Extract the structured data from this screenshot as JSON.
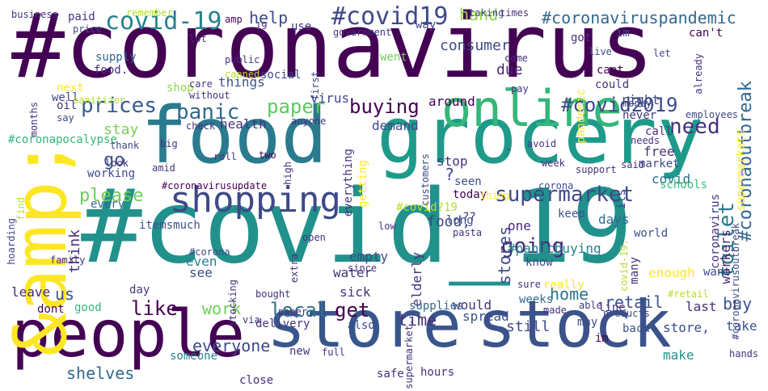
{
  "words": [
    {
      "id": "w001",
      "text": "#coronavirus",
      "color": "#440154"
    },
    {
      "id": "w002",
      "text": "#covid_19",
      "color": "#21918c"
    },
    {
      "id": "w003",
      "text": "food",
      "color": "#2a7b8e"
    },
    {
      "id": "w004",
      "text": "grocery",
      "color": "#1e9a8a"
    },
    {
      "id": "w005",
      "text": "store",
      "color": "#39568c"
    },
    {
      "id": "w006",
      "text": "stock",
      "color": "#3b528b"
    },
    {
      "id": "w007",
      "text": "people",
      "color": "#440154"
    },
    {
      "id": "w008",
      "text": "&amp;",
      "color": "#fde725"
    },
    {
      "id": "w009",
      "text": "online",
      "color": "#35b779"
    },
    {
      "id": "w010",
      "text": "shopping",
      "color": "#3e4989"
    },
    {
      "id": "w011",
      "text": "covid-19",
      "color": "#26828e"
    },
    {
      "id": "w012",
      "text": "#covid19",
      "color": "#3e4989"
    },
    {
      "id": "w013",
      "text": "#coronaviruspandemic",
      "color": "#31688e"
    },
    {
      "id": "w014",
      "text": "supermarket",
      "color": "#3e4989"
    },
    {
      "id": "w015",
      "text": "panic",
      "color": "#31688e"
    },
    {
      "id": "w016",
      "text": "prices",
      "color": "#365c8d"
    },
    {
      "id": "w017",
      "text": "paper",
      "color": "#5ec962"
    },
    {
      "id": "w018",
      "text": "buying",
      "color": "#440154"
    },
    {
      "id": "w019",
      "text": "need",
      "color": "#46327e"
    },
    {
      "id": "w020",
      "text": "#covid2019",
      "color": "#3e4989"
    },
    {
      "id": "w021",
      "text": "#coronaoutbreak",
      "color": "#31688e"
    },
    {
      "id": "w022",
      "text": "toilet",
      "color": "#287d8e"
    },
    {
      "id": "w023",
      "text": "going",
      "color": "#482878"
    },
    {
      "id": "w024",
      "text": "like",
      "color": "#440154"
    },
    {
      "id": "w025",
      "text": "get",
      "color": "#440154"
    },
    {
      "id": "w026",
      "text": "local",
      "color": "#2c728e"
    },
    {
      "id": "w027",
      "text": "please",
      "color": "#6ece58"
    },
    {
      "id": "w028",
      "text": "go",
      "color": "#3b528b"
    },
    {
      "id": "w029",
      "text": "stay",
      "color": "#7ad151"
    },
    {
      "id": "w030",
      "text": "help",
      "color": "#3e4989"
    },
    {
      "id": "w031",
      "text": "hand",
      "color": "#90d743"
    },
    {
      "id": "w032",
      "text": "consumer",
      "color": "#3e4989"
    },
    {
      "id": "w033",
      "text": "due",
      "color": "#482878"
    },
    {
      "id": "w034",
      "text": "demand",
      "color": "#3e4989"
    },
    {
      "id": "w035",
      "text": "stores",
      "color": "#3e4989"
    },
    {
      "id": "w036",
      "text": "home",
      "color": "#2c728e"
    },
    {
      "id": "w037",
      "text": "time",
      "color": "#46327e"
    },
    {
      "id": "w038",
      "text": "work",
      "color": "#6ece58"
    },
    {
      "id": "w039",
      "text": "everyone",
      "color": "#3e4989"
    },
    {
      "id": "w040",
      "text": "shelves",
      "color": "#31688e"
    },
    {
      "id": "w041",
      "text": "retail",
      "color": "#3b528b"
    },
    {
      "id": "w042",
      "text": "buy",
      "color": "#3b528b"
    },
    {
      "id": "w043",
      "text": "us",
      "color": "#3b528b"
    },
    {
      "id": "w044",
      "text": "food,",
      "color": "#3e4989"
    },
    {
      "id": "w045",
      "text": "covid",
      "color": "#2c728e"
    },
    {
      "id": "w046",
      "text": "free",
      "color": "#46327e"
    },
    {
      "id": "w047",
      "text": "market",
      "color": "#3e4989"
    },
    {
      "id": "w048",
      "text": "working",
      "color": "#3e4989"
    },
    {
      "id": "w049",
      "text": "health",
      "color": "#46327e"
    },
    {
      "id": "w050",
      "text": "supply",
      "color": "#31688e"
    },
    {
      "id": "w051",
      "text": "food.",
      "color": "#46327e"
    },
    {
      "id": "w052",
      "text": "things",
      "color": "#3b528b"
    },
    {
      "id": "w053",
      "text": "shop",
      "color": "#90d743"
    },
    {
      "id": "w054",
      "text": "social",
      "color": "#3e4989"
    },
    {
      "id": "w055",
      "text": "virus",
      "color": "#3e4989"
    },
    {
      "id": "w056",
      "text": "#covid?19",
      "color": "#b5de2b"
    },
    {
      "id": "w057",
      "text": "#panicbuying",
      "color": "#26828e"
    },
    {
      "id": "w058",
      "text": "days",
      "color": "#31688e"
    },
    {
      "id": "w059",
      "text": "keep",
      "color": "#3b528b"
    },
    {
      "id": "w060",
      "text": "know",
      "color": "#3e4989"
    },
    {
      "id": "w061",
      "text": "one",
      "color": "#482878"
    },
    {
      "id": "w062",
      "text": "long",
      "color": "#3b528b"
    },
    {
      "id": "w063",
      "text": "today",
      "color": "#440154"
    },
    {
      "id": "w064",
      "text": "seen",
      "color": "#3b528b"
    },
    {
      "id": "w065",
      "text": "stop",
      "color": "#46327e"
    },
    {
      "id": "w066",
      "text": "every",
      "color": "#31688e"
    },
    {
      "id": "w067",
      "text": "itemsmuch",
      "color": "#3b528b"
    },
    {
      "id": "w068",
      "text": "think",
      "color": "#46327e"
    },
    {
      "id": "w069",
      "text": "even",
      "color": "#26828e"
    },
    {
      "id": "w070",
      "text": "see",
      "color": "#3b528b"
    },
    {
      "id": "w071",
      "text": "day",
      "color": "#46327e"
    },
    {
      "id": "w072",
      "text": "empty",
      "color": "#3e4989"
    },
    {
      "id": "w073",
      "text": "water",
      "color": "#46327e"
    },
    {
      "id": "w074",
      "text": "sick",
      "color": "#46327e"
    },
    {
      "id": "w075",
      "text": "elderly",
      "color": "#46327e"
    },
    {
      "id": "w076",
      "text": "leave",
      "color": "#482878"
    },
    {
      "id": "w077",
      "text": "don\u0019t",
      "color": "#440154"
    },
    {
      "id": "w078",
      "text": "good",
      "color": "#35b779"
    },
    {
      "id": "w079",
      "text": "would",
      "color": "#46327e"
    },
    {
      "id": "w080",
      "text": "supplies",
      "color": "#31688e"
    },
    {
      "id": "w081",
      "text": "weeks",
      "color": "#31688e"
    },
    {
      "id": "w082",
      "text": "really",
      "color": "#fde725"
    },
    {
      "id": "w083",
      "text": "still",
      "color": "#3e4989"
    },
    {
      "id": "w084",
      "text": "spread",
      "color": "#3b528b"
    },
    {
      "id": "w085",
      "text": "also",
      "color": "#3e4989"
    },
    {
      "id": "w086",
      "text": "delivery",
      "color": "#46327e"
    },
    {
      "id": "w087",
      "text": "new",
      "color": "#46327e"
    },
    {
      "id": "w088",
      "text": "someone",
      "color": "#26828e"
    },
    {
      "id": "w089",
      "text": "make",
      "color": "#21918c"
    },
    {
      "id": "w090",
      "text": "take",
      "color": "#3b528b"
    },
    {
      "id": "w091",
      "text": "last",
      "color": "#482878"
    },
    {
      "id": "w092",
      "text": "back",
      "color": "#3b528b"
    },
    {
      "id": "w093",
      "text": "store,",
      "color": "#3e4989"
    },
    {
      "id": "w094",
      "text": "may",
      "color": "#3e4989"
    },
    {
      "id": "w095",
      "text": "line",
      "color": "#46327e"
    },
    {
      "id": "w096",
      "text": "i\u0019m",
      "color": "#440154"
    },
    {
      "id": "w097",
      "text": "many",
      "color": "#46327e"
    },
    {
      "id": "w098",
      "text": "enough",
      "color": "#fde725"
    },
    {
      "id": "w099",
      "text": "want",
      "color": "#3e4989"
    },
    {
      "id": "w100",
      "text": "world",
      "color": "#3b528b"
    },
    {
      "id": "w101",
      "text": "workers",
      "color": "#482878"
    },
    {
      "id": "w102",
      "text": "coronavirus",
      "color": "#46327e"
    },
    {
      "id": "w103",
      "text": "it\u0019s",
      "color": "#3e4989"
    },
    {
      "id": "w104",
      "text": "#coronavirusoutbreak",
      "color": "#3e4989"
    },
    {
      "id": "w105",
      "text": "#coronavirusupdate",
      "color": "#440154"
    },
    {
      "id": "w106",
      "text": "#coronapocalypse",
      "color": "#35b779"
    },
    {
      "id": "w107",
      "text": "everything",
      "color": "#46327e"
    },
    {
      "id": "w108",
      "text": "getting",
      "color": "#fde725"
    },
    {
      "id": "w109",
      "text": "around",
      "color": "#440154"
    },
    {
      "id": "w110",
      "text": "call",
      "color": "#46327e"
    },
    {
      "id": "w111",
      "text": "never",
      "color": "#46327e"
    },
    {
      "id": "w112",
      "text": "right",
      "color": "#3e4989"
    },
    {
      "id": "w113",
      "text": "could",
      "color": "#46327e"
    },
    {
      "id": "w114",
      "text": "can\u0019t",
      "color": "#440154"
    },
    {
      "id": "w115",
      "text": "pandemic",
      "color": "#fde725"
    },
    {
      "id": "w116",
      "text": "got",
      "color": "#46327e"
    },
    {
      "id": "w117",
      "text": "went",
      "color": "#6ece58"
    },
    {
      "id": "w118",
      "text": "way",
      "color": "#3e4989"
    },
    {
      "id": "w119",
      "text": "i\u0019m",
      "color": "#3e4989"
    },
    {
      "id": "w120",
      "text": "can't",
      "color": "#440154"
    },
    {
      "id": "w121",
      "text": "paid",
      "color": "#46327e"
    },
    {
      "id": "w122",
      "text": "amp",
      "color": "#440154"
    },
    {
      "id": "w123",
      "text": "19",
      "color": "#46327e"
    },
    {
      "id": "w124",
      "text": "use",
      "color": "#46327e"
    },
    {
      "id": "w125",
      "text": "business",
      "color": "#46327e"
    },
    {
      "id": "w126",
      "text": "remember",
      "color": "#b5de2b"
    },
    {
      "id": "w127",
      "text": "taking",
      "color": "#3e4989"
    },
    {
      "id": "w128",
      "text": "times",
      "color": "#46327e"
    },
    {
      "id": "w129",
      "text": "price",
      "color": "#3e4989"
    },
    {
      "id": "w130",
      "text": "government",
      "color": "#46327e"
    },
    {
      "id": "w131",
      "text": "live",
      "color": "#3e4989"
    },
    {
      "id": "w132",
      "text": "come",
      "color": "#46327e"
    },
    {
      "id": "w133",
      "text": "let",
      "color": "#3e4989"
    },
    {
      "id": "w134",
      "text": "already",
      "color": "#46327e"
    },
    {
      "id": "w135",
      "text": "lot",
      "color": "#46327e"
    },
    {
      "id": "w136",
      "text": "public",
      "color": "#46327e"
    },
    {
      "id": "w137",
      "text": "canned",
      "color": "#b5de2b"
    },
    {
      "id": "w138",
      "text": "first",
      "color": "#3e4989"
    },
    {
      "id": "w139",
      "text": "care",
      "color": "#46327e"
    },
    {
      "id": "w140",
      "text": "without",
      "color": "#46327e"
    },
    {
      "id": "w141",
      "text": "next",
      "color": "#fde725"
    },
    {
      "id": "w142",
      "text": "well",
      "color": "#3e4989"
    },
    {
      "id": "w143",
      "text": "sanitizer",
      "color": "#b5de2b"
    },
    {
      "id": "w144",
      "text": "oil",
      "color": "#46327e"
    },
    {
      "id": "w145",
      "text": "say",
      "color": "#3e4989"
    },
    {
      "id": "w146",
      "text": "months",
      "color": "#46327e"
    },
    {
      "id": "w147",
      "text": "pay",
      "color": "#46327e"
    },
    {
      "id": "w148",
      "text": "money",
      "color": "#3e4989"
    },
    {
      "id": "w149",
      "text": "employees",
      "color": "#3e4989"
    },
    {
      "id": "w150",
      "text": "anyone",
      "color": "#46327e"
    },
    {
      "id": "w151",
      "text": "check",
      "color": "#46327e"
    },
    {
      "id": "w152",
      "text": "thank",
      "color": "#3e4989"
    },
    {
      "id": "w153",
      "text": "big",
      "color": "#46327e"
    },
    {
      "id": "w154",
      "text": "look",
      "color": "#46327e"
    },
    {
      "id": "w155",
      "text": "amid",
      "color": "#46327e"
    },
    {
      "id": "w156",
      "text": "roll",
      "color": "#46327e"
    },
    {
      "id": "w157",
      "text": "two",
      "color": "#440154"
    },
    {
      "id": "w158",
      "text": "high",
      "color": "#46327e"
    },
    {
      "id": "w159",
      "text": "customers",
      "color": "#3e4989"
    },
    {
      "id": "w160",
      "text": "avoid",
      "color": "#46327e"
    },
    {
      "id": "w161",
      "text": "week",
      "color": "#46327e"
    },
    {
      "id": "w162",
      "text": "support",
      "color": "#46327e"
    },
    {
      "id": "w163",
      "text": "said",
      "color": "#46327e"
    },
    {
      "id": "w164",
      "text": "needs",
      "color": "#46327e"
    },
    {
      "id": "w165",
      "text": "thing",
      "color": "#fde725"
    },
    {
      "id": "w166",
      "text": "corona",
      "color": "#3e4989"
    },
    {
      "id": "w167",
      "text": "schools",
      "color": "#35b779"
    },
    {
      "id": "w168",
      "text": "find",
      "color": "#b5de2b"
    },
    {
      "id": "w169",
      "text": "hoarding",
      "color": "#3e4989"
    },
    {
      "id": "w170",
      "text": "family",
      "color": "#46327e"
    },
    {
      "id": "w171",
      "text": "#corona",
      "color": "#3e4989"
    },
    {
      "id": "w172",
      "text": "extra",
      "color": "#46327e"
    },
    {
      "id": "w173",
      "text": "since",
      "color": "#46327e"
    },
    {
      "id": "w174",
      "text": "open",
      "color": "#46327e"
    },
    {
      "id": "w175",
      "text": "low",
      "color": "#46327e"
    },
    {
      "id": "w176",
      "text": "pasta",
      "color": "#46327e"
    },
    {
      "id": "w177",
      "text": "sure",
      "color": "#46327e"
    },
    {
      "id": "w178",
      "text": "able",
      "color": "#46327e"
    },
    {
      "id": "w179",
      "text": "products",
      "color": "#3e4989"
    },
    {
      "id": "w180",
      "text": "#retail",
      "color": "#b5de2b"
    },
    {
      "id": "w181",
      "text": "covid-19.",
      "color": "#b5de2b"
    },
    {
      "id": "w182",
      "text": "stocking",
      "color": "#46327e"
    },
    {
      "id": "w183",
      "text": "bought",
      "color": "#46327e"
    },
    {
      "id": "w184",
      "text": "via",
      "color": "#46327e"
    },
    {
      "id": "w185",
      "text": "paper,",
      "color": "#46327e"
    },
    {
      "id": "w186",
      "text": "supermarket.",
      "color": "#46327e"
    },
    {
      "id": "w187",
      "text": "full",
      "color": "#46327e"
    },
    {
      "id": "w188",
      "text": "safe",
      "color": "#46327e"
    },
    {
      "id": "w189",
      "text": "made",
      "color": "#46327e"
    },
    {
      "id": "w190",
      "text": "hours",
      "color": "#46327e"
    },
    {
      "id": "w191",
      "text": "close",
      "color": "#46327e"
    },
    {
      "id": "w192",
      "text": "hands",
      "color": "#46327e"
    },
    {
      "id": "w193",
      "text": "supermarkets",
      "color": "#fde725"
    },
    {
      "id": "w194",
      "text": "?",
      "color": "#3e4989"
    },
    {
      "id": "w195",
      "text": "??",
      "color": "#46327e"
    },
    {
      "id": "w196",
      "text": "-",
      "color": "#3e4989"
    }
  ]
}
